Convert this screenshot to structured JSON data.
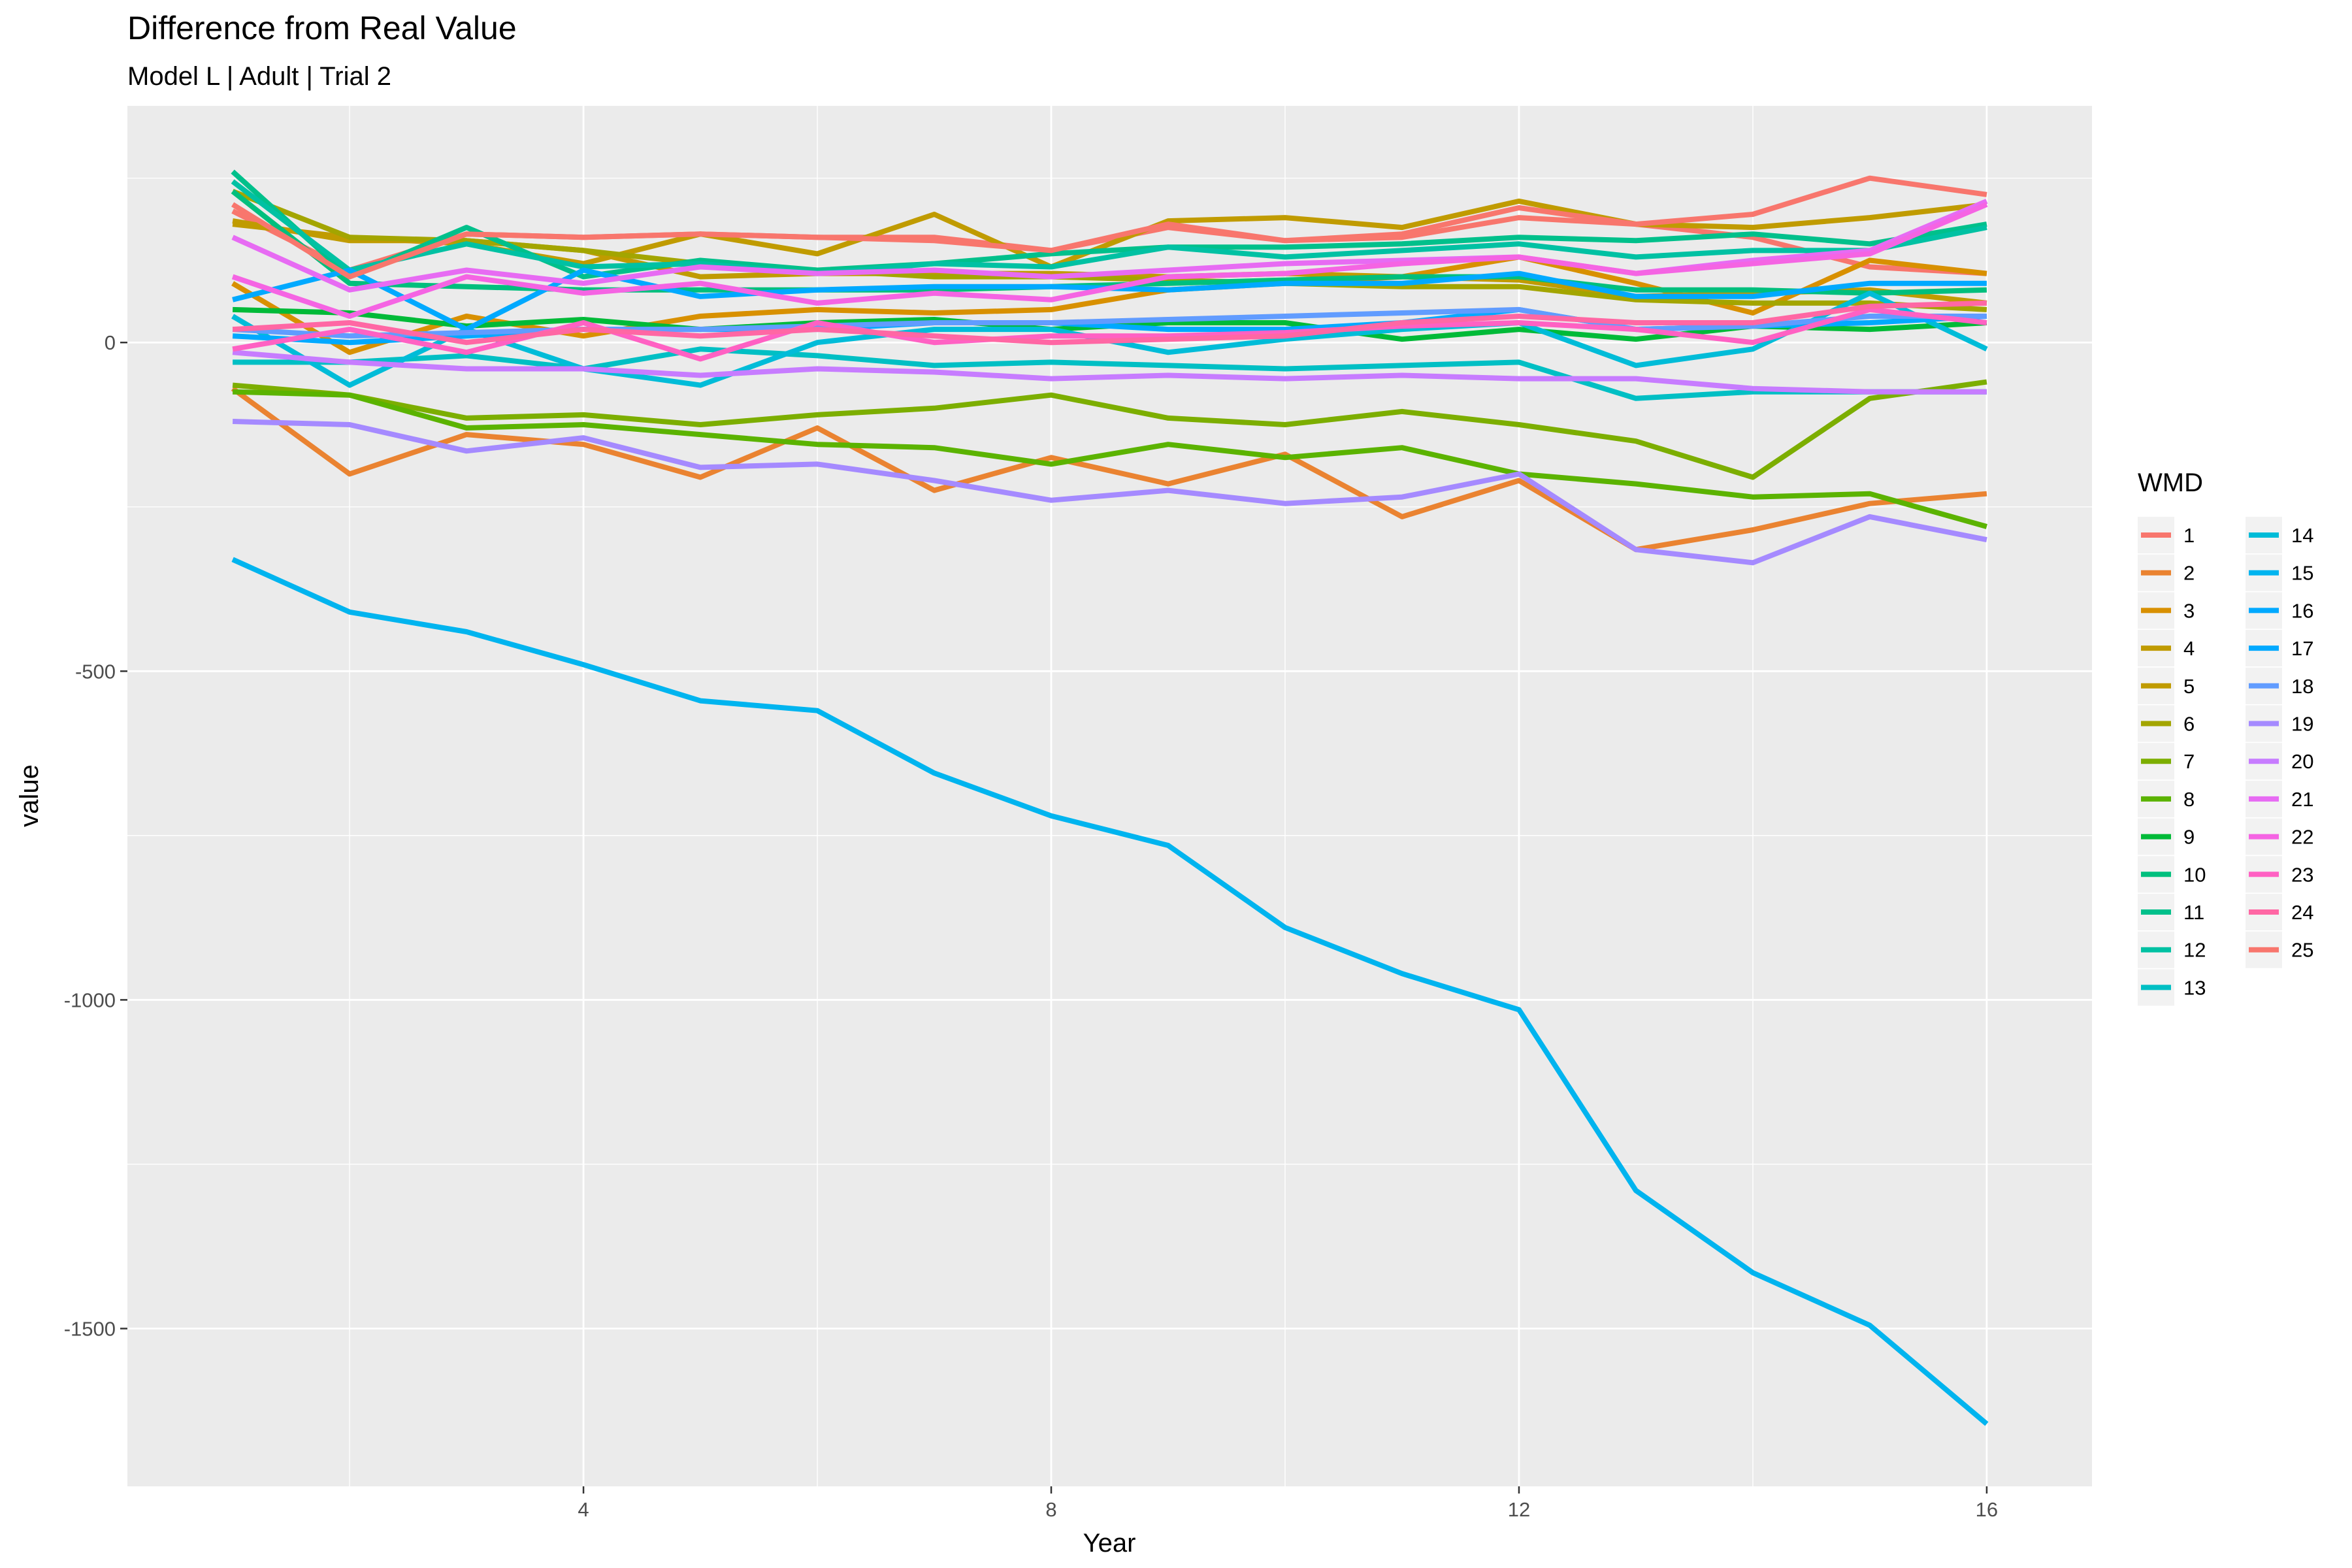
{
  "chart_data": {
    "type": "line",
    "title": "Difference from Real Value",
    "subtitle": "Model L | Adult | Trial 2",
    "xlabel": "Year",
    "ylabel": "value",
    "xlim": [
      0.1,
      16.9
    ],
    "ylim": [
      -1740,
      360
    ],
    "x_ticks": [
      4,
      8,
      12,
      16
    ],
    "x_tick_labels": [
      "4",
      "8",
      "12",
      "16"
    ],
    "y_ticks": [
      0,
      -500,
      -1000,
      -1500
    ],
    "y_tick_labels": [
      "0",
      "-500",
      "-1000",
      "-1500"
    ],
    "grid": true,
    "legend_title": "WMD",
    "legend_position": "right",
    "x": [
      1,
      2,
      3,
      4,
      5,
      6,
      7,
      8,
      9,
      10,
      11,
      12,
      13,
      14,
      15,
      16
    ],
    "series": [
      {
        "name": "1",
        "color": "#F8766D",
        "values": [
          200,
          110,
          165,
          160,
          165,
          160,
          160,
          140,
          175,
          155,
          160,
          190,
          180,
          160,
          115,
          105
        ]
      },
      {
        "name": "2",
        "color": "#EA8331",
        "values": [
          -70,
          -200,
          -140,
          -155,
          -205,
          -130,
          -225,
          -175,
          -215,
          -170,
          -265,
          -210,
          -315,
          -285,
          -245,
          -230
        ]
      },
      {
        "name": "3",
        "color": "#D89000",
        "values": [
          90,
          -15,
          40,
          10,
          40,
          50,
          45,
          50,
          80,
          90,
          100,
          130,
          90,
          45,
          125,
          105
        ]
      },
      {
        "name": "4",
        "color": "#C09B00",
        "values": [
          185,
          155,
          155,
          140,
          100,
          105,
          105,
          105,
          100,
          105,
          100,
          95,
          70,
          75,
          80,
          60
        ]
      },
      {
        "name": "5",
        "color": "#C09B00",
        "values": [
          180,
          160,
          150,
          120,
          165,
          135,
          195,
          115,
          185,
          190,
          175,
          215,
          180,
          175,
          190,
          210
        ]
      },
      {
        "name": "6",
        "color": "#A3A500",
        "values": [
          230,
          160,
          155,
          140,
          120,
          110,
          100,
          100,
          95,
          90,
          85,
          85,
          65,
          60,
          60,
          50
        ]
      },
      {
        "name": "7",
        "color": "#7CAE00",
        "values": [
          -65,
          -80,
          -115,
          -110,
          -125,
          -110,
          -100,
          -80,
          -115,
          -125,
          -105,
          -125,
          -150,
          -205,
          -85,
          -60
        ]
      },
      {
        "name": "8",
        "color": "#5BB300",
        "values": [
          -75,
          -80,
          -130,
          -125,
          -140,
          -155,
          -160,
          -185,
          -155,
          -175,
          -160,
          -200,
          -215,
          -235,
          -230,
          -280
        ]
      },
      {
        "name": "9",
        "color": "#00BA38",
        "values": [
          50,
          45,
          25,
          35,
          20,
          30,
          35,
          20,
          30,
          30,
          5,
          20,
          5,
          25,
          20,
          30
        ]
      },
      {
        "name": "10",
        "color": "#00BF7D",
        "values": [
          230,
          90,
          85,
          80,
          80,
          80,
          80,
          85,
          90,
          95,
          100,
          100,
          80,
          80,
          75,
          80
        ]
      },
      {
        "name": "11",
        "color": "#00C08B",
        "values": [
          260,
          100,
          175,
          100,
          125,
          110,
          120,
          135,
          145,
          145,
          150,
          160,
          155,
          165,
          150,
          180
        ]
      },
      {
        "name": "12",
        "color": "#00C1A3",
        "values": [
          245,
          110,
          150,
          115,
          120,
          105,
          120,
          115,
          145,
          130,
          140,
          150,
          130,
          140,
          140,
          175
        ]
      },
      {
        "name": "13",
        "color": "#00BFC4",
        "values": [
          -30,
          -30,
          -20,
          -40,
          -10,
          -20,
          -35,
          -30,
          -35,
          -40,
          -35,
          -30,
          -85,
          -75,
          -75,
          -75
        ]
      },
      {
        "name": "14",
        "color": "#00BCD8",
        "values": [
          40,
          -65,
          20,
          -40,
          -65,
          0,
          20,
          20,
          -15,
          5,
          20,
          30,
          -35,
          -10,
          75,
          -10
        ]
      },
      {
        "name": "15",
        "color": "#00B4EF",
        "values": [
          -330,
          -410,
          -440,
          -490,
          -545,
          -560,
          -655,
          -720,
          -765,
          -890,
          -960,
          -1015,
          -1290,
          -1415,
          -1495,
          -1645
        ]
      },
      {
        "name": "16",
        "color": "#00A9FF",
        "values": [
          10,
          0,
          10,
          20,
          20,
          20,
          30,
          30,
          20,
          20,
          30,
          50,
          20,
          25,
          30,
          40
        ]
      },
      {
        "name": "17",
        "color": "#00A9FF",
        "values": [
          65,
          110,
          20,
          110,
          70,
          80,
          85,
          85,
          80,
          90,
          90,
          105,
          70,
          70,
          90,
          90
        ]
      },
      {
        "name": "18",
        "color": "#619CFF",
        "values": [
          20,
          10,
          15,
          20,
          20,
          25,
          30,
          30,
          35,
          40,
          45,
          50,
          20,
          25,
          40,
          40
        ]
      },
      {
        "name": "19",
        "color": "#A58AFF",
        "values": [
          -120,
          -125,
          -165,
          -145,
          -190,
          -185,
          -210,
          -240,
          -225,
          -245,
          -235,
          -200,
          -315,
          -335,
          -265,
          -300
        ]
      },
      {
        "name": "20",
        "color": "#C77CFF",
        "values": [
          -15,
          -30,
          -40,
          -40,
          -50,
          -40,
          -45,
          -55,
          -50,
          -55,
          -50,
          -55,
          -55,
          -70,
          -75,
          -75
        ]
      },
      {
        "name": "21",
        "color": "#E76BF3",
        "values": [
          160,
          80,
          110,
          90,
          115,
          105,
          110,
          100,
          110,
          120,
          125,
          130,
          105,
          125,
          140,
          215
        ]
      },
      {
        "name": "22",
        "color": "#F564E3",
        "values": [
          100,
          40,
          100,
          75,
          90,
          60,
          75,
          65,
          100,
          105,
          120,
          130,
          105,
          120,
          135,
          210
        ]
      },
      {
        "name": "23",
        "color": "#FF61C3",
        "values": [
          -10,
          20,
          -15,
          30,
          -25,
          30,
          0,
          10,
          10,
          15,
          25,
          30,
          20,
          0,
          50,
          30
        ]
      },
      {
        "name": "24",
        "color": "#FF67A4",
        "values": [
          20,
          30,
          0,
          20,
          10,
          20,
          10,
          0,
          5,
          10,
          30,
          40,
          30,
          30,
          55,
          60
        ]
      },
      {
        "name": "25",
        "color": "#F8766D",
        "values": [
          210,
          100,
          165,
          160,
          165,
          160,
          155,
          140,
          180,
          155,
          165,
          205,
          180,
          195,
          250,
          225
        ]
      }
    ]
  }
}
